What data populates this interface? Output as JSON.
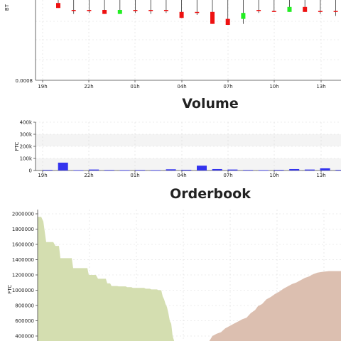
{
  "chart_data": [
    {
      "type": "candlestick",
      "ylabel": "BT",
      "y_tick_labels": [
        "0.0008"
      ],
      "x_tick_labels": [
        "19h",
        "22h",
        "01h",
        "04h",
        "07h",
        "10h",
        "13h"
      ],
      "grid": true,
      "candles": [
        {
          "color": "red",
          "open": 8.7,
          "close": 8.2,
          "high": 9.0,
          "low": 8.2
        },
        {
          "color": "red",
          "open": 8.0,
          "close": 7.9,
          "high": 9.0,
          "low": 7.6
        },
        {
          "color": "red",
          "open": 8.0,
          "close": 7.9,
          "high": 9.0,
          "low": 7.7
        },
        {
          "color": "red",
          "open": 8.0,
          "close": 7.6,
          "high": 9.0,
          "low": 7.6
        },
        {
          "color": "green",
          "open": 7.6,
          "close": 8.0,
          "high": 9.0,
          "low": 7.6
        },
        {
          "color": "red",
          "open": 8.0,
          "close": 7.9,
          "high": 9.0,
          "low": 7.7
        },
        {
          "color": "red",
          "open": 8.0,
          "close": 7.9,
          "high": 9.0,
          "low": 7.6
        },
        {
          "color": "red",
          "open": 8.0,
          "close": 7.9,
          "high": 9.0,
          "low": 7.7
        },
        {
          "color": "red",
          "open": 7.8,
          "close": 7.2,
          "high": 9.0,
          "low": 7.2
        },
        {
          "color": "red",
          "open": 7.8,
          "close": 7.7,
          "high": 9.0,
          "low": 7.5
        },
        {
          "color": "red",
          "open": 7.8,
          "close": 6.6,
          "high": 9.0,
          "low": 6.6
        },
        {
          "color": "red",
          "open": 7.1,
          "close": 6.5,
          "high": 9.0,
          "low": 6.5
        },
        {
          "color": "green",
          "open": 7.1,
          "close": 7.7,
          "high": 9.0,
          "low": 6.6
        },
        {
          "color": "red",
          "open": 8.0,
          "close": 7.9,
          "high": 9.0,
          "low": 7.7
        },
        {
          "color": "red",
          "open": 7.9,
          "close": 7.8,
          "high": 9.0,
          "low": 7.8
        },
        {
          "color": "green",
          "open": 7.8,
          "close": 8.3,
          "high": 9.0,
          "low": 7.8
        },
        {
          "color": "red",
          "open": 8.3,
          "close": 7.8,
          "high": 9.0,
          "low": 7.8
        },
        {
          "color": "red",
          "open": 7.9,
          "close": 7.8,
          "high": 9.0,
          "low": 7.6
        },
        {
          "color": "red",
          "open": 7.9,
          "close": 7.8,
          "high": 9.0,
          "low": 7.4
        },
        {
          "color": "red",
          "open": 7.9,
          "close": 7.8,
          "high": 9.0,
          "low": 7.6
        }
      ]
    },
    {
      "type": "bar",
      "title": "Volume",
      "ylabel": "FTC",
      "y_tick_labels": [
        "0",
        "100k",
        "200k",
        "300k",
        "400k"
      ],
      "x_tick_labels": [
        "19h",
        "22h",
        "01h",
        "04h",
        "07h",
        "10h",
        "13h"
      ],
      "ylim": [
        0,
        400000
      ],
      "grid": true,
      "bar_color": "#3333ee",
      "values": [
        5000,
        65000,
        3000,
        8000,
        4000,
        3000,
        4000,
        3000,
        10000,
        6000,
        40000,
        12000,
        8000,
        4000,
        3000,
        5000,
        12000,
        8000,
        18000,
        5000
      ]
    },
    {
      "type": "area",
      "title": "Orderbook",
      "ylabel": "FTC",
      "y_tick_labels": [
        "400000",
        "600000",
        "800000",
        "1000000",
        "1200000",
        "1400000",
        "1600000",
        "1800000",
        "2000000"
      ],
      "ylim": [
        300000,
        2030000
      ],
      "grid": true,
      "bids_color": "#d4deb0",
      "asks_color": "#dcbfb0",
      "bids": [
        [
          0,
          1960000
        ],
        [
          5,
          1960000
        ],
        [
          8,
          1900000
        ],
        [
          12,
          1630000
        ],
        [
          22,
          1630000
        ],
        [
          25,
          1580000
        ],
        [
          30,
          1580000
        ],
        [
          32,
          1420000
        ],
        [
          48,
          1420000
        ],
        [
          50,
          1290000
        ],
        [
          70,
          1290000
        ],
        [
          72,
          1200000
        ],
        [
          82,
          1200000
        ],
        [
          85,
          1150000
        ],
        [
          96,
          1150000
        ],
        [
          98,
          1090000
        ],
        [
          102,
          1090000
        ],
        [
          104,
          1055000
        ],
        [
          112,
          1055000
        ],
        [
          114,
          1050000
        ],
        [
          124,
          1050000
        ],
        [
          126,
          1040000
        ],
        [
          132,
          1040000
        ],
        [
          134,
          1030000
        ],
        [
          150,
          1030000
        ],
        [
          152,
          1020000
        ],
        [
          158,
          1020000
        ],
        [
          160,
          1010000
        ],
        [
          168,
          1010000
        ],
        [
          170,
          1000000
        ],
        [
          174,
          1000000
        ],
        [
          176,
          920000
        ],
        [
          178,
          880000
        ],
        [
          180,
          820000
        ],
        [
          182,
          780000
        ],
        [
          184,
          700000
        ],
        [
          186,
          600000
        ],
        [
          188,
          560000
        ],
        [
          190,
          400000
        ],
        [
          192,
          340000
        ],
        [
          193,
          300000
        ]
      ],
      "asks": [
        [
          238,
          300000
        ],
        [
          242,
          340000
        ],
        [
          246,
          400000
        ],
        [
          252,
          430000
        ],
        [
          258,
          450000
        ],
        [
          264,
          500000
        ],
        [
          270,
          530000
        ],
        [
          276,
          560000
        ],
        [
          282,
          590000
        ],
        [
          288,
          620000
        ],
        [
          294,
          640000
        ],
        [
          300,
          700000
        ],
        [
          306,
          740000
        ],
        [
          310,
          790000
        ],
        [
          316,
          820000
        ],
        [
          322,
          880000
        ],
        [
          328,
          910000
        ],
        [
          334,
          950000
        ],
        [
          340,
          980000
        ],
        [
          346,
          1020000
        ],
        [
          352,
          1050000
        ],
        [
          358,
          1080000
        ],
        [
          364,
          1100000
        ],
        [
          370,
          1130000
        ],
        [
          376,
          1160000
        ],
        [
          382,
          1180000
        ],
        [
          388,
          1210000
        ],
        [
          394,
          1230000
        ],
        [
          400,
          1240000
        ],
        [
          410,
          1250000
        ],
        [
          427,
          1250000
        ]
      ]
    }
  ]
}
